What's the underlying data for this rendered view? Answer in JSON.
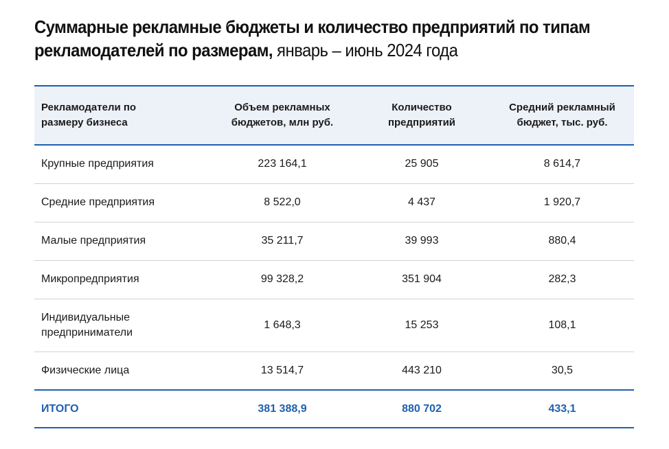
{
  "title": {
    "main": "Суммарные рекламные бюджеты и количество предприятий по типам рекламодателей по размерам,",
    "sub": " январь – июнь 2024 года"
  },
  "table": {
    "headers": [
      "Рекламодатели по размеру бизнеса",
      "Объем рекламных бюджетов, млн руб.",
      "Количество предприятий",
      "Средний рекламный бюджет, тыс. руб."
    ],
    "rows": [
      [
        "Крупные предприятия",
        "223 164,1",
        "25 905",
        "8 614,7"
      ],
      [
        "Средние предприятия",
        "8 522,0",
        "4 437",
        "1 920,7"
      ],
      [
        "Малые предприятия",
        "35 211,7",
        "39 993",
        "880,4"
      ],
      [
        "Микропредприятия",
        "99 328,2",
        "351 904",
        "282,3"
      ],
      [
        "Индивидуальные предприниматели",
        "1 648,3",
        "15 253",
        "108,1"
      ],
      [
        "Физические лица",
        "13 514,7",
        "443 210",
        "30,5"
      ]
    ],
    "total": [
      "ИТОГО",
      "381 388,9",
      "880 702",
      "433,1"
    ]
  },
  "colors": {
    "accent": "#1f5fae",
    "header_bg": "#edf1f8",
    "row_divider": "#d2d2d2",
    "text": "#1a1a1a"
  }
}
